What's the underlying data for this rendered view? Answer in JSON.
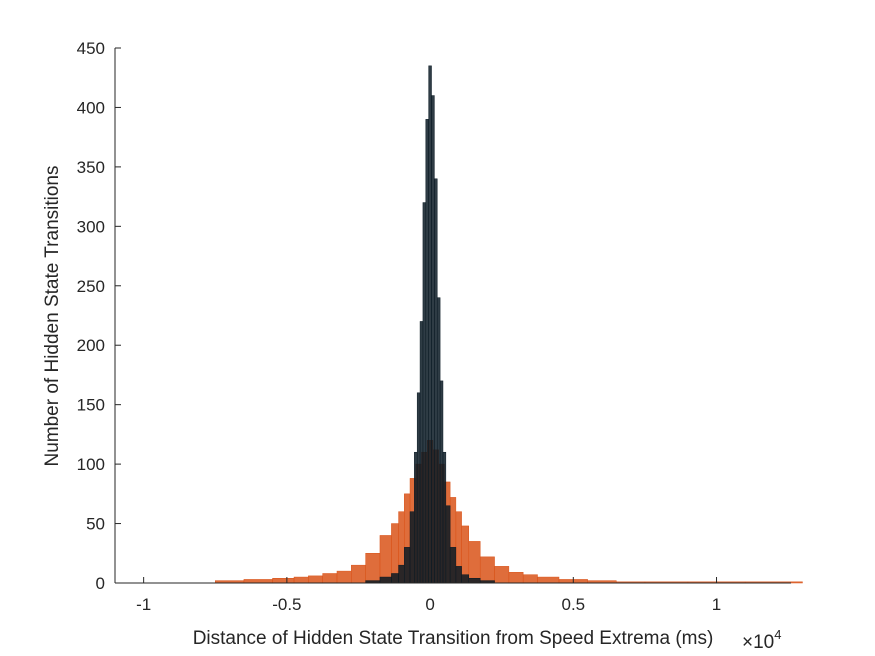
{
  "chart_data": {
    "type": "bar",
    "title": "",
    "xlabel": "Distance of Hidden State Transition from Speed Extrema (ms)",
    "ylabel": "Number of Hidden State Transitions",
    "x_exponent_label": "×10",
    "x_exponent_power": "4",
    "xlim": [
      -1.1,
      1.26
    ],
    "ylim": [
      0,
      450
    ],
    "x_ticks": [
      -1,
      -0.5,
      0,
      0.5,
      1
    ],
    "x_tick_labels": [
      "-1",
      "-0.5",
      "0",
      "0.5",
      "1"
    ],
    "y_ticks": [
      0,
      50,
      100,
      150,
      200,
      250,
      300,
      350,
      400,
      450
    ],
    "y_tick_labels": [
      "0",
      "50",
      "100",
      "150",
      "200",
      "250",
      "300",
      "350",
      "400",
      "450"
    ],
    "grid": false,
    "legend": "none",
    "series": [
      {
        "color": "#0b1a24",
        "x": [
          -0.2,
          -0.15,
          -0.12,
          -0.1,
          -0.08,
          -0.06,
          -0.05,
          -0.04,
          -0.03,
          -0.02,
          -0.01,
          0.0,
          0.01,
          0.02,
          0.03,
          0.04,
          0.05,
          0.06,
          0.08,
          0.1,
          0.12,
          0.15,
          0.2
        ],
        "values": [
          2,
          5,
          8,
          15,
          30,
          60,
          110,
          160,
          220,
          320,
          390,
          435,
          410,
          340,
          240,
          170,
          110,
          65,
          30,
          14,
          7,
          4,
          2
        ]
      },
      {
        "color": "#d95319",
        "x": [
          -0.7,
          -0.6,
          -0.5,
          -0.45,
          -0.4,
          -0.35,
          -0.3,
          -0.25,
          -0.2,
          -0.15,
          -0.12,
          -0.1,
          -0.08,
          -0.06,
          -0.04,
          -0.02,
          0.0,
          0.02,
          0.04,
          0.06,
          0.08,
          0.1,
          0.12,
          0.15,
          0.2,
          0.25,
          0.3,
          0.35,
          0.4,
          0.5,
          0.6,
          0.7,
          0.8,
          1.0,
          1.2
        ],
        "values": [
          2,
          3,
          4,
          5,
          6,
          8,
          10,
          15,
          25,
          40,
          50,
          60,
          75,
          88,
          100,
          110,
          120,
          112,
          100,
          85,
          72,
          60,
          48,
          35,
          22,
          14,
          9,
          7,
          5,
          3,
          2,
          1,
          1,
          1,
          1
        ]
      }
    ]
  }
}
